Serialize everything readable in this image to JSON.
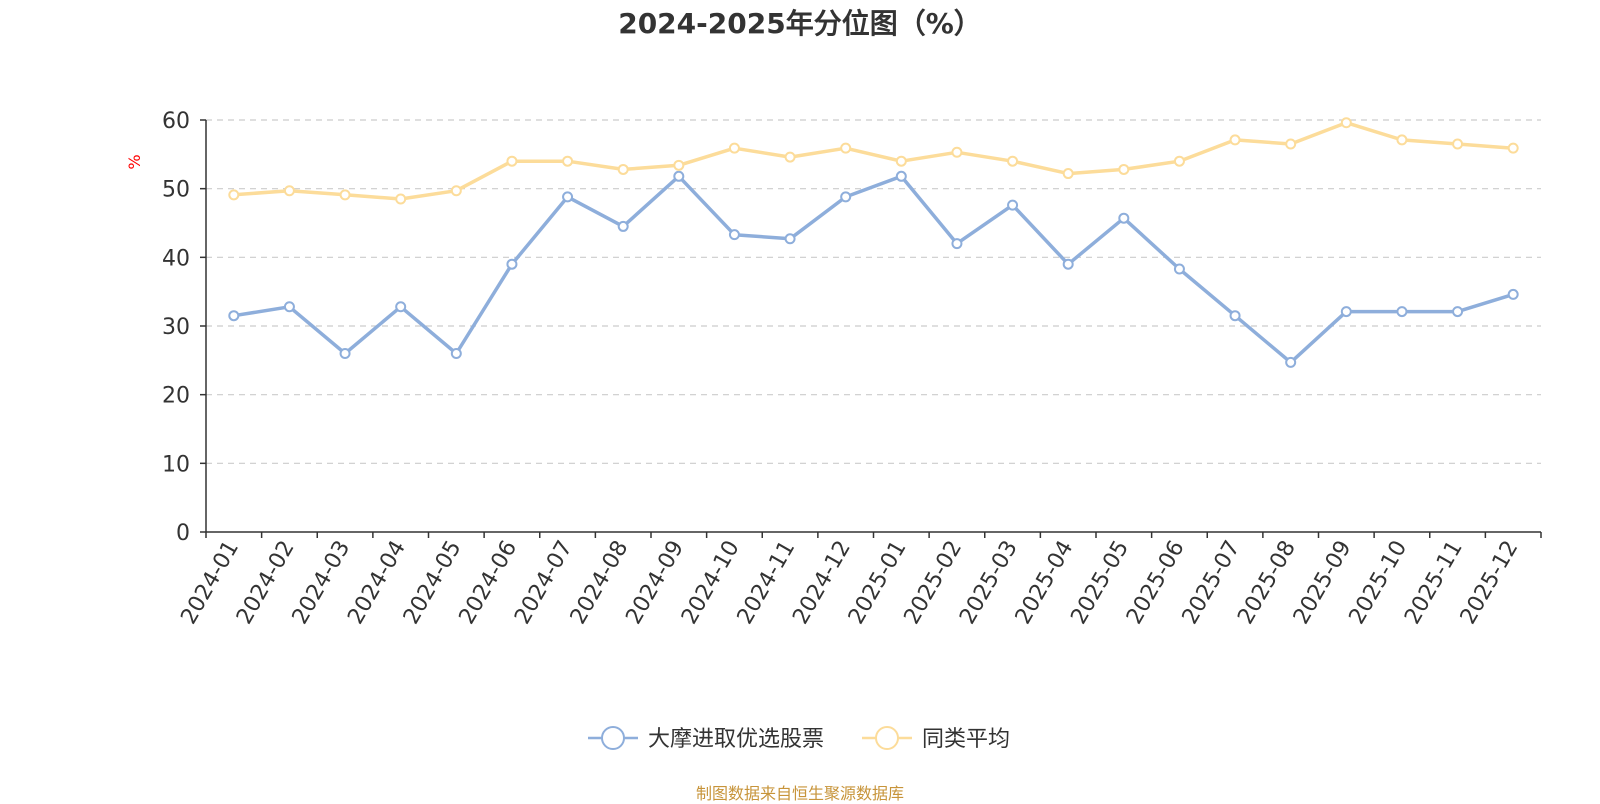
{
  "chart_data": {
    "type": "line",
    "title": "2024-2025年分位图（%）",
    "ylabel": "%",
    "xlabel": "",
    "ylim": [
      0,
      60
    ],
    "yticks": [
      0,
      10,
      20,
      30,
      40,
      50,
      60
    ],
    "grid": true,
    "legend_position": "bottom-center",
    "categories": [
      "2024-01",
      "2024-02",
      "2024-03",
      "2024-04",
      "2024-05",
      "2024-06",
      "2024-07",
      "2024-08",
      "2024-09",
      "2024-10",
      "2024-11",
      "2024-12",
      "2025-01",
      "2025-02",
      "2025-03",
      "2025-04",
      "2025-05",
      "2025-06",
      "2025-07",
      "2025-08",
      "2025-09",
      "2025-10",
      "2025-11",
      "2025-12"
    ],
    "series": [
      {
        "name": "大摩进取优选股票",
        "color": "#8eaedb",
        "values": [
          31.5,
          32.8,
          26.0,
          32.8,
          26.0,
          39.0,
          48.8,
          44.5,
          51.8,
          43.3,
          42.7,
          48.8,
          51.8,
          42.0,
          47.6,
          39.0,
          45.7,
          38.3,
          31.5,
          24.7,
          32.1,
          32.1,
          32.1,
          34.6
        ]
      },
      {
        "name": "同类平均",
        "color": "#fcdc9a",
        "values": [
          49.1,
          49.7,
          49.1,
          48.5,
          49.7,
          54.0,
          54.0,
          52.8,
          53.4,
          55.9,
          54.6,
          55.9,
          54.0,
          55.3,
          54.0,
          52.2,
          52.8,
          54.0,
          57.1,
          56.5,
          59.6,
          57.1,
          56.5,
          55.9
        ]
      }
    ]
  },
  "source_text": "制图数据来自恒生聚源数据库"
}
